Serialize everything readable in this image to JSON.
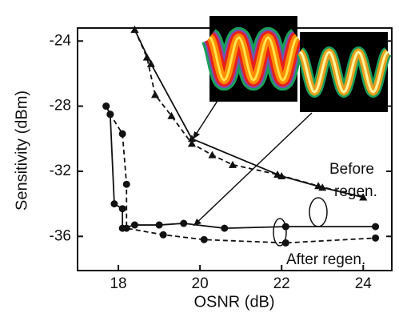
{
  "chart_data": {
    "type": "line",
    "x_label": "OSNR (dB)",
    "y_label": "Sensitivity (dBm)",
    "xlim": [
      17,
      24.7
    ],
    "ylim": [
      -38.1,
      -23.2
    ],
    "xticks": [
      18,
      20,
      22,
      24
    ],
    "yticks": [
      -24,
      -28,
      -32,
      -36
    ],
    "annotations": [
      "Before",
      "regen.",
      "After regen."
    ],
    "series": [
      {
        "color": "#111111",
        "marker": "triangle",
        "dashed": false,
        "x": [
          18.4,
          18.8,
          19.8,
          22.0,
          23.0,
          24.0
        ],
        "y": [
          -23.3,
          -25.4,
          -30.0,
          -32.3,
          -33.0,
          -33.6
        ]
      },
      {
        "color": "#111111",
        "marker": "triangle",
        "dashed": true,
        "x": [
          18.4,
          18.7,
          18.9,
          19.3,
          19.8,
          20.3,
          20.8,
          21.9,
          22.9,
          24.0
        ],
        "y": [
          -23.3,
          -25.0,
          -27.3,
          -28.6,
          -30.3,
          -31.0,
          -31.6,
          -32.2,
          -32.9,
          -33.6
        ]
      },
      {
        "color": "#111111",
        "marker": "circle",
        "dashed": false,
        "x": [
          17.7,
          17.8,
          17.9,
          18.1,
          18.1,
          18.4,
          19.0,
          19.6,
          20.6,
          22.1,
          24.3
        ],
        "y": [
          -28.0,
          -28.5,
          -34.0,
          -34.3,
          -35.5,
          -35.3,
          -35.3,
          -35.2,
          -35.5,
          -35.4,
          -35.4
        ]
      },
      {
        "color": "#111111",
        "marker": "circle",
        "dashed": true,
        "x": [
          17.7,
          17.8,
          18.1,
          18.2,
          18.2,
          19.1,
          20.1,
          22.1,
          24.3
        ],
        "y": [
          -28.0,
          -28.5,
          -29.7,
          -32.8,
          -35.5,
          -35.9,
          -36.2,
          -36.4,
          -36.1
        ]
      }
    ]
  }
}
